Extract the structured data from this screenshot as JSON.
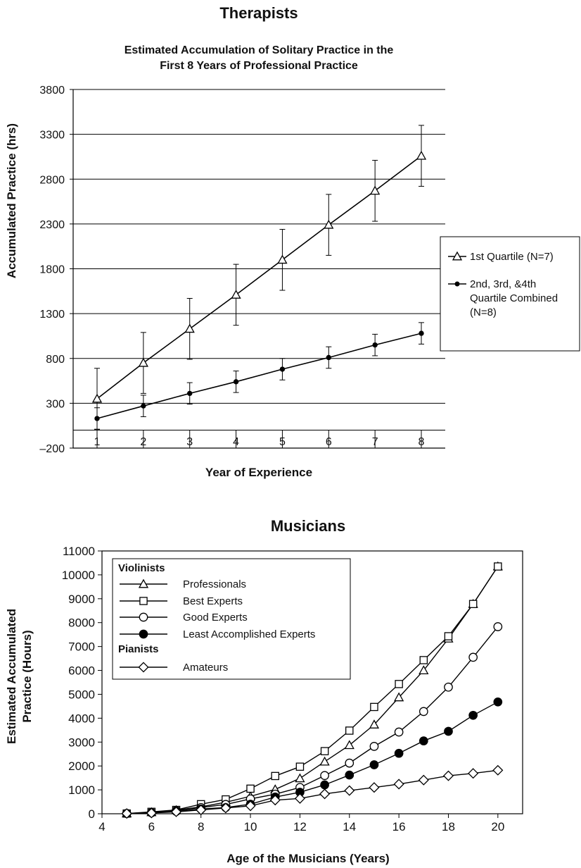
{
  "chart_data": [
    {
      "type": "line",
      "panel_title": "Therapists",
      "title": "Estimated Accumulation of Solitary Practice in the First 8 Years of Professional Practice",
      "title_lines": [
        "Estimated Accumulation of Solitary Practice in the",
        "First 8 Years of Professional Practice"
      ],
      "xlabel": "Year of Experience",
      "ylabel": "Accumulated Practice (hrs)",
      "x": [
        1,
        2,
        3,
        4,
        5,
        6,
        7,
        8
      ],
      "xticks": [
        "1",
        "2",
        "3",
        "4",
        "5",
        "6",
        "7",
        "8"
      ],
      "yticks": [
        "3800",
        "3300",
        "2800",
        "2300",
        "1800",
        "1300",
        "800",
        "300",
        "–200"
      ],
      "ylim": [
        -200,
        3800
      ],
      "grid": true,
      "legend_position": "right",
      "series": [
        {
          "name": "1st Quartile (N=7)",
          "marker": "open-triangle",
          "values": [
            350,
            750,
            1130,
            1510,
            1900,
            2290,
            2670,
            3060
          ],
          "error": [
            340,
            340,
            340,
            340,
            340,
            340,
            340,
            340
          ]
        },
        {
          "name": "2nd, 3rd, &4th Quartile Combined (N=8)",
          "name_lines": [
            "2nd, 3rd, &4th",
            "Quartile Combined",
            "(N=8)"
          ],
          "marker": "filled-circle",
          "values": [
            130,
            270,
            410,
            540,
            680,
            810,
            950,
            1080
          ],
          "error": [
            120,
            120,
            120,
            120,
            120,
            120,
            120,
            120
          ]
        }
      ]
    },
    {
      "type": "line",
      "panel_title": "Musicians",
      "xlabel": "Age of the Musicians (Years)",
      "ylabel": "Estimated Accumulated Practice (Hours)",
      "ylabel_lines": [
        "Estimated Accumulated",
        "Practice (Hours)"
      ],
      "xlim": [
        4,
        21
      ],
      "ylim": [
        0,
        11000
      ],
      "xticks": [
        "4",
        "6",
        "8",
        "10",
        "12",
        "14",
        "16",
        "18",
        "20"
      ],
      "yticks": [
        "11000",
        "10000",
        "9000",
        "8000",
        "7000",
        "6000",
        "5000",
        "4000",
        "3000",
        "2000",
        "1000",
        "0"
      ],
      "grid": false,
      "legend_position": "top-left",
      "legend_groups": [
        "Violinists",
        "Pianists"
      ],
      "x": [
        5,
        6,
        7,
        8,
        9,
        10,
        11,
        12,
        13,
        14,
        15,
        16,
        17,
        18,
        19,
        20
      ],
      "series": [
        {
          "name": "Professionals",
          "group": "Violinists",
          "marker": "open-triangle",
          "values": [
            10,
            60,
            150,
            290,
            480,
            730,
            1020,
            1480,
            2180,
            2870,
            3730,
            4870,
            6000,
            7330,
            8780,
            10350
          ]
        },
        {
          "name": "Best Experts",
          "group": "Violinists",
          "marker": "open-square",
          "values": [
            10,
            80,
            160,
            400,
            600,
            1050,
            1580,
            1970,
            2620,
            3480,
            4470,
            5430,
            6430,
            7430,
            8780,
            10350
          ]
        },
        {
          "name": "Good Experts",
          "group": "Violinists",
          "marker": "open-circle",
          "values": [
            10,
            50,
            130,
            260,
            390,
            620,
            820,
            1100,
            1600,
            2120,
            2820,
            3420,
            4280,
            5300,
            6550,
            7830
          ]
        },
        {
          "name": "Least Accomplished Experts",
          "group": "Violinists",
          "marker": "filled-circle",
          "values": [
            10,
            40,
            100,
            200,
            260,
            400,
            700,
            900,
            1210,
            1620,
            2050,
            2530,
            3050,
            3450,
            4120,
            4680
          ]
        },
        {
          "name": "Amateurs",
          "group": "Pianists",
          "marker": "open-diamond",
          "values": [
            10,
            30,
            80,
            160,
            240,
            330,
            570,
            640,
            830,
            970,
            1100,
            1240,
            1410,
            1590,
            1690,
            1820
          ]
        }
      ]
    }
  ]
}
